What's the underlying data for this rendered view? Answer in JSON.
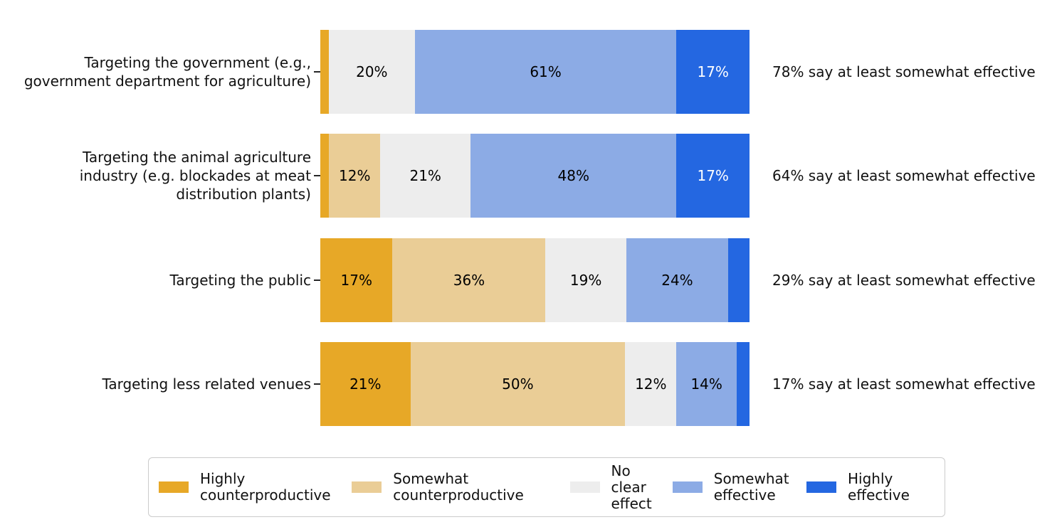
{
  "chart_data": {
    "type": "bar",
    "orientation": "horizontal-stacked",
    "unit": "%",
    "title": "",
    "xlabel": "",
    "ylabel": "",
    "grid": false,
    "legend_position": "bottom",
    "series_labels": [
      "Highly counterproductive",
      "Somewhat counterproductive",
      "No clear effect",
      "Somewhat effective",
      "Highly effective"
    ],
    "colors": [
      "#E7A827",
      "#EACD96",
      "#EDEDED",
      "#8CABE5",
      "#2467E1"
    ],
    "label_colors": [
      "#000000",
      "#000000",
      "#000000",
      "#000000",
      "#FFFFFF"
    ],
    "legend": [
      "Highly\ncounterproductive",
      "Somewhat\ncounterproductive",
      "No\nclear\neffect",
      "Somewhat\neffective",
      "Highly\neffective"
    ],
    "rows": [
      {
        "category": "Targeting the government (e.g.,\ngovernment department for agriculture)",
        "values": [
          2,
          0,
          20,
          61,
          17
        ],
        "labels": [
          "",
          "",
          "20%",
          "61%",
          "17%"
        ],
        "annotation": "78% say at least somewhat effective"
      },
      {
        "category": "Targeting the animal agriculture\nindustry (e.g. blockades at meat\ndistribution plants)",
        "values": [
          2,
          12,
          21,
          48,
          17
        ],
        "labels": [
          "",
          "12%",
          "21%",
          "48%",
          "17%"
        ],
        "annotation": "64% say at least somewhat effective"
      },
      {
        "category": "Targeting the public",
        "values": [
          17,
          36,
          19,
          24,
          5
        ],
        "labels": [
          "17%",
          "36%",
          "19%",
          "24%",
          ""
        ],
        "annotation": "29% say at least somewhat effective"
      },
      {
        "category": "Targeting less related venues",
        "values": [
          21,
          50,
          12,
          14,
          3
        ],
        "labels": [
          "21%",
          "50%",
          "12%",
          "14%",
          ""
        ],
        "annotation": "17% say at least somewhat effective"
      }
    ]
  }
}
